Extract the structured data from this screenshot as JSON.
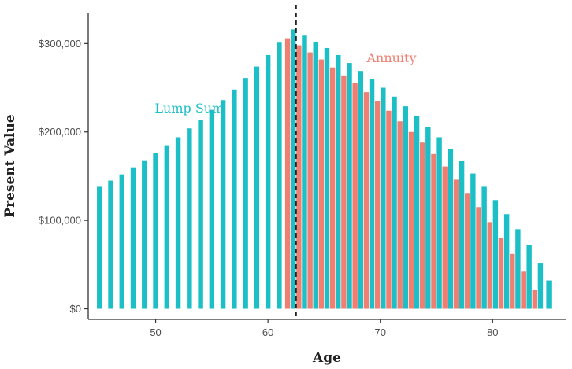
{
  "chart_data": {
    "type": "bar",
    "xlabel": "Age",
    "ylabel": "Present Value",
    "xlim": [
      44,
      86.5
    ],
    "ylim": [
      -12000,
      335000
    ],
    "x_ticks": [
      50,
      60,
      70,
      80
    ],
    "y_ticks": [
      0,
      100000,
      200000,
      300000
    ],
    "y_tick_labels": [
      "$0",
      "$100,000",
      "$200,000",
      "$300,000"
    ],
    "grid": false,
    "vertical_line": {
      "x": 62.5,
      "style": "dashed"
    },
    "series": [
      {
        "name": "Lump Sum",
        "color": "#1bbfc5",
        "x": [
          45,
          46,
          47,
          48,
          49,
          50,
          51,
          52,
          53,
          54,
          55,
          56,
          57,
          58,
          59,
          60,
          61,
          62,
          63,
          64,
          65,
          66,
          67,
          68,
          69,
          70,
          71,
          72,
          73,
          74,
          75,
          76,
          77,
          78,
          79,
          80,
          81,
          82,
          83,
          84,
          85
        ],
        "values": [
          138000,
          145000,
          152000,
          160000,
          168000,
          176000,
          185000,
          194000,
          204000,
          214000,
          225000,
          236000,
          248000,
          261000,
          274000,
          287000,
          301000,
          316000,
          309000,
          302000,
          295000,
          287000,
          278000,
          269000,
          260000,
          250000,
          240000,
          229000,
          218000,
          206000,
          194000,
          181000,
          167000,
          153000,
          138000,
          123000,
          107000,
          90000,
          72000,
          52000,
          32000
        ]
      },
      {
        "name": "Annuity",
        "color": "#ee7f72",
        "x": [
          62,
          63,
          64,
          65,
          66,
          67,
          68,
          69,
          70,
          71,
          72,
          73,
          74,
          75,
          76,
          77,
          78,
          79,
          80,
          81,
          82,
          83,
          84
        ],
        "values": [
          306000,
          298000,
          290000,
          282000,
          273000,
          264000,
          255000,
          245000,
          235000,
          224000,
          212000,
          200000,
          188000,
          175000,
          161000,
          146000,
          131000,
          115000,
          98000,
          80000,
          62000,
          42000,
          21000
        ]
      }
    ],
    "annotations": [
      {
        "text": "Lump Sum",
        "color": "#1bbfc5",
        "x": 53,
        "y": 222000
      },
      {
        "text": "Annuity",
        "color": "#ee7f72",
        "x": 71,
        "y": 279000
      }
    ]
  }
}
